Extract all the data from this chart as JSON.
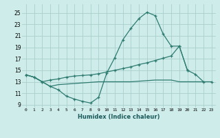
{
  "xlabel": "Humidex (Indice chaleur)",
  "bg_color": "#ceecea",
  "grid_color": "#aacfcc",
  "line_color": "#2d7b6f",
  "xlim": [
    -0.5,
    23.5
  ],
  "ylim": [
    8.5,
    26.5
  ],
  "xticks": [
    0,
    1,
    2,
    3,
    4,
    5,
    6,
    7,
    8,
    9,
    10,
    11,
    12,
    13,
    14,
    15,
    16,
    17,
    18,
    19,
    20,
    21,
    22,
    23
  ],
  "yticks": [
    9,
    11,
    13,
    15,
    17,
    19,
    21,
    23,
    25
  ],
  "line1_x": [
    0,
    1,
    2,
    3,
    4,
    5,
    6,
    7,
    8,
    9,
    10,
    11,
    12,
    13,
    14,
    15,
    16,
    17,
    18,
    19,
    20,
    21,
    22,
    23
  ],
  "line1_y": [
    14.2,
    13.8,
    13.0,
    12.2,
    11.6,
    10.5,
    10.0,
    9.6,
    9.3,
    10.3,
    14.5,
    17.2,
    20.3,
    22.3,
    24.0,
    25.1,
    24.5,
    21.3,
    19.2,
    19.2,
    15.0,
    14.3,
    13.0,
    null
  ],
  "line2_x": [
    0,
    1,
    2,
    3,
    4,
    5,
    6,
    7,
    8,
    9,
    10,
    11,
    12,
    13,
    14,
    15,
    16,
    17,
    18,
    19,
    20,
    21,
    22,
    23
  ],
  "line2_y": [
    14.2,
    13.8,
    13.0,
    13.3,
    13.5,
    13.8,
    14.0,
    14.1,
    14.2,
    14.4,
    14.7,
    15.0,
    15.3,
    15.6,
    16.0,
    16.3,
    16.7,
    17.1,
    17.5,
    19.2,
    15.0,
    null,
    null,
    13.0
  ],
  "line3_x": [
    0,
    1,
    2,
    3,
    4,
    5,
    6,
    7,
    8,
    9,
    10,
    11,
    12,
    13,
    14,
    15,
    16,
    17,
    18,
    19,
    20,
    21,
    22,
    23
  ],
  "line3_y": [
    14.2,
    13.8,
    13.0,
    12.2,
    12.5,
    12.6,
    12.7,
    12.8,
    12.9,
    13.0,
    13.0,
    13.0,
    13.0,
    13.0,
    13.1,
    13.2,
    13.3,
    13.3,
    13.3,
    13.0,
    13.0,
    13.0,
    13.0,
    13.0
  ]
}
